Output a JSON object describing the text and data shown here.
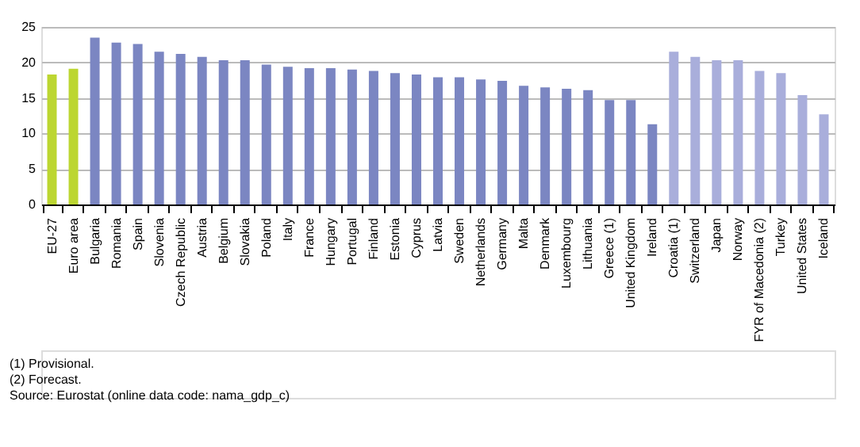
{
  "chart_data": {
    "type": "bar",
    "categories": [
      "EU-27",
      "Euro area",
      "Bulgaria",
      "Romania",
      "Spain",
      "Slovenia",
      "Czech Republic",
      "Austria",
      "Belgium",
      "Slovakia",
      "Poland",
      "Italy",
      "France",
      "Hungary",
      "Portugal",
      "Finland",
      "Estonia",
      "Cyprus",
      "Latvia",
      "Sweden",
      "Netherlands",
      "Germany",
      "Malta",
      "Denmark",
      "Luxembourg",
      "Lithuania",
      "Greece (1)",
      "United Kingdom",
      "Ireland",
      "Croatia (1)",
      "Switzerland",
      "Japan",
      "Norway",
      "FYR of Macedonia (2)",
      "Turkey",
      "United States",
      "Iceland"
    ],
    "values": [
      18.3,
      19.1,
      23.5,
      22.8,
      22.6,
      21.5,
      21.2,
      20.8,
      20.3,
      20.3,
      19.7,
      19.4,
      19.2,
      19.2,
      19.0,
      18.8,
      18.5,
      18.3,
      17.9,
      17.9,
      17.6,
      17.4,
      16.7,
      16.5,
      16.3,
      16.1,
      14.7,
      14.7,
      11.3,
      21.5,
      20.8,
      20.3,
      20.3,
      18.8,
      18.5,
      15.4,
      12.7
    ],
    "colors": [
      "#bcd631",
      "#bcd631",
      "#7b86c2",
      "#7b86c2",
      "#7b86c2",
      "#7b86c2",
      "#7b86c2",
      "#7b86c2",
      "#7b86c2",
      "#7b86c2",
      "#7b86c2",
      "#7b86c2",
      "#7b86c2",
      "#7b86c2",
      "#7b86c2",
      "#7b86c2",
      "#7b86c2",
      "#7b86c2",
      "#7b86c2",
      "#7b86c2",
      "#7b86c2",
      "#7b86c2",
      "#7b86c2",
      "#7b86c2",
      "#7b86c2",
      "#7b86c2",
      "#7b86c2",
      "#7b86c2",
      "#7b86c2",
      "#a9aedb",
      "#a9aedb",
      "#a9aedb",
      "#a9aedb",
      "#a9aedb",
      "#a9aedb",
      "#a9aedb",
      "#a9aedb"
    ],
    "ylim": [
      0,
      25
    ],
    "yticks": [
      0,
      5,
      10,
      15,
      20,
      25
    ],
    "grid": "y",
    "annotations": [
      "(1) Provisional.",
      "(2) Forecast.",
      "Source: Eurostat (online data code: nama_gdp_c)"
    ]
  }
}
